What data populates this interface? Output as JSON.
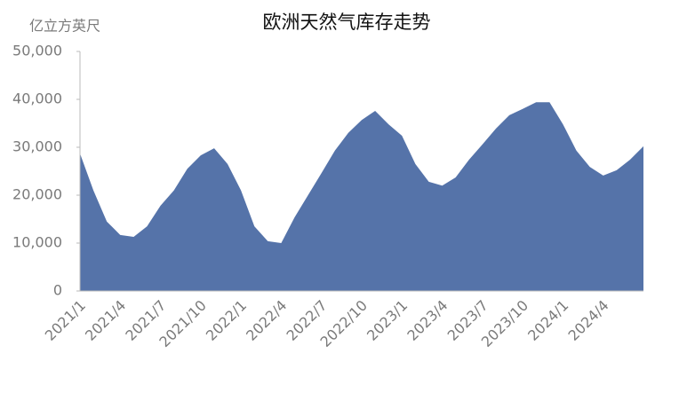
{
  "chart_data": {
    "type": "area",
    "title": "欧洲天然气库存走势",
    "y_label": "亿立方英尺",
    "color": "#5573a9",
    "categories": [
      "2021/1",
      null,
      null,
      "2021/4",
      null,
      null,
      "2021/7",
      null,
      null,
      "2021/10",
      null,
      null,
      "2022/1",
      null,
      null,
      "2022/4",
      null,
      null,
      "2022/7",
      null,
      null,
      "2022/10",
      null,
      null,
      "2023/1",
      null,
      null,
      "2023/4",
      null,
      null,
      "2023/7",
      null,
      null,
      "2023/10",
      null,
      null,
      "2024/1",
      null,
      null,
      "2024/4",
      null,
      null,
      null
    ],
    "values": [
      28700,
      21000,
      14500,
      11700,
      11300,
      13500,
      17800,
      21000,
      25500,
      28300,
      29800,
      26500,
      21000,
      13500,
      10400,
      10000,
      15400,
      20000,
      24600,
      29300,
      33000,
      35700,
      37600,
      34800,
      32400,
      26500,
      22800,
      22000,
      23700,
      27400,
      30600,
      33900,
      36700,
      38000,
      39400,
      39400,
      34800,
      29300,
      25900,
      24100,
      25200,
      27400,
      30200
    ],
    "ylim": [
      0,
      50000
    ],
    "yticks": [
      0,
      {
        "value": 10000,
        "label": "10,000"
      },
      {
        "value": 20000,
        "label": "20,000"
      },
      {
        "value": 30000,
        "label": "30,000"
      },
      {
        "value": 40000,
        "label": "40,000"
      },
      {
        "value": 50000,
        "label": "50,000"
      }
    ],
    "grid": false
  }
}
